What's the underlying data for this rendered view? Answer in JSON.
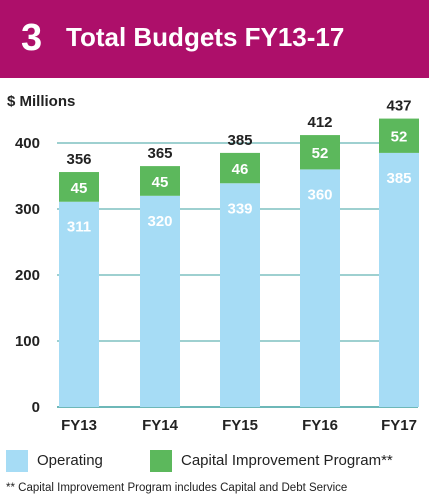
{
  "header": {
    "number": "3",
    "title": "Total Budgets FY13-17"
  },
  "colors": {
    "header_bg": "#ad0f6a",
    "operating": "#a6dcf5",
    "capital": "#5cb85c",
    "grid": "#3ea0a0"
  },
  "legend": {
    "operating": "Operating",
    "capital": "Capital Improvement Program**"
  },
  "footnote": "** Capital Improvement Program includes Capital and Debt Service",
  "chart_data": {
    "type": "bar",
    "stacked": true,
    "ylabel": "$ Millions",
    "ylim": [
      0,
      400
    ],
    "yticks": [
      0,
      100,
      200,
      300,
      400
    ],
    "categories": [
      "FY13",
      "FY14",
      "FY15",
      "FY16",
      "FY17"
    ],
    "series": [
      {
        "name": "Operating",
        "values": [
          311,
          320,
          339,
          360,
          385
        ]
      },
      {
        "name": "Capital Improvement Program**",
        "values": [
          45,
          45,
          46,
          52,
          52
        ]
      }
    ],
    "totals": [
      356,
      365,
      385,
      412,
      437
    ],
    "grid": true,
    "legend_position": "bottom"
  }
}
